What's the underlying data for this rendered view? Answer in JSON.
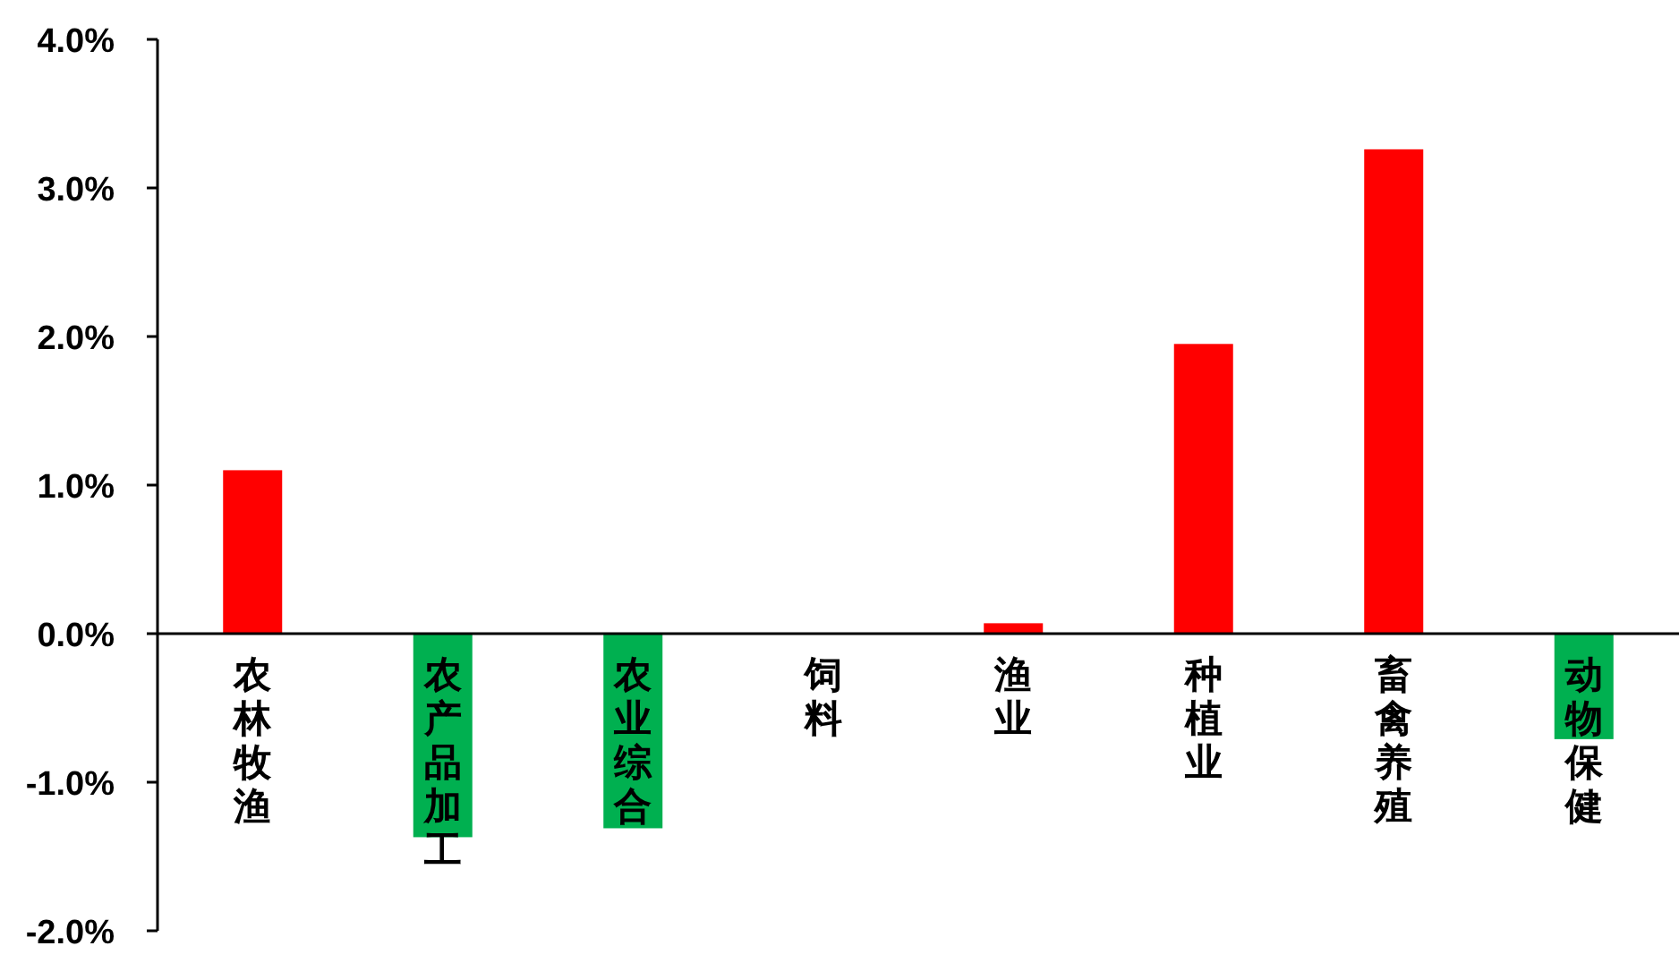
{
  "chart_data": {
    "type": "bar",
    "categories": [
      "农林牧渔",
      "农产品加工",
      "农业综合",
      "饲料",
      "渔业",
      "种植业",
      "畜禽养殖",
      "动物保健"
    ],
    "values": [
      1.1,
      -1.37,
      -1.31,
      0,
      0.07,
      1.95,
      3.26,
      -0.71
    ],
    "colors": [
      "#ff0000",
      "#00b050",
      "#00b050",
      "#ff0000",
      "#ff0000",
      "#ff0000",
      "#ff0000",
      "#00b050"
    ],
    "ylim": [
      -2,
      4
    ],
    "yticks": [
      {
        "value": -2,
        "label": "-2.0%"
      },
      {
        "value": -1,
        "label": "-1.0%"
      },
      {
        "value": 0,
        "label": "0.0%"
      },
      {
        "value": 1,
        "label": "1.0%"
      },
      {
        "value": 2,
        "label": "2.0%"
      },
      {
        "value": 3,
        "label": "3.0%"
      },
      {
        "value": 4,
        "label": "4.0%"
      }
    ],
    "grid": false
  }
}
